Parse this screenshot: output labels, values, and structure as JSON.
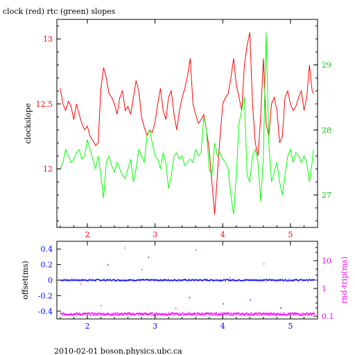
{
  "title": "clock (red) rtc (green) slopes",
  "footer": "2010-02-01 boson.physics.ubc.ca",
  "colors": {
    "clock": "#ff0000",
    "rtc": "#00ff00",
    "offset": "#0000ff",
    "rnd_trip": "#ff00ff",
    "axis": "#000000",
    "left_tick_top": "#ff0000",
    "right_tick_top": "#00cc00",
    "left_tick_bottom": "#0000ff",
    "right_tick_bottom": "#ff00ff"
  },
  "chart_data": [
    {
      "type": "line",
      "title": "clock (red) rtc (green) slopes",
      "ylabel": "clockslope",
      "xlim": [
        1.55,
        5.4
      ],
      "ylim": [
        11.55,
        13.15
      ],
      "y2lim": [
        26.5,
        29.7
      ],
      "x_ticks": [
        2,
        3,
        4,
        5
      ],
      "y_ticks": [
        12,
        12.5,
        13
      ],
      "y2_ticks": [
        27,
        28,
        29
      ],
      "grid": false,
      "series": [
        {
          "name": "clock",
          "axis": "left",
          "color": "#ff0000",
          "x": [
            1.6,
            1.64,
            1.68,
            1.72,
            1.76,
            1.8,
            1.84,
            1.88,
            1.92,
            1.96,
            2.0,
            2.04,
            2.08,
            2.12,
            2.16,
            2.2,
            2.24,
            2.28,
            2.32,
            2.36,
            2.4,
            2.44,
            2.48,
            2.52,
            2.56,
            2.6,
            2.64,
            2.68,
            2.72,
            2.76,
            2.8,
            2.84,
            2.88,
            2.92,
            2.96,
            3.0,
            3.04,
            3.08,
            3.12,
            3.16,
            3.2,
            3.24,
            3.28,
            3.32,
            3.36,
            3.4,
            3.44,
            3.48,
            3.52,
            3.56,
            3.6,
            3.64,
            3.68,
            3.72,
            3.76,
            3.8,
            3.84,
            3.88,
            3.92,
            3.96,
            4.0,
            4.04,
            4.08,
            4.12,
            4.16,
            4.2,
            4.24,
            4.28,
            4.32,
            4.36,
            4.4,
            4.44,
            4.48,
            4.52,
            4.56,
            4.6,
            4.64,
            4.68,
            4.72,
            4.76,
            4.8,
            4.84,
            4.88,
            4.92,
            4.96,
            5.0,
            5.04,
            5.08,
            5.12,
            5.16,
            5.2,
            5.24,
            5.28,
            5.32,
            5.34
          ],
          "y": [
            12.62,
            12.5,
            12.45,
            12.52,
            12.48,
            12.38,
            12.5,
            12.42,
            12.35,
            12.3,
            12.33,
            12.25,
            12.22,
            12.18,
            12.2,
            12.62,
            12.78,
            12.7,
            12.58,
            12.55,
            12.5,
            12.42,
            12.55,
            12.6,
            12.45,
            12.48,
            12.42,
            12.55,
            12.68,
            12.6,
            12.4,
            12.32,
            12.26,
            12.3,
            12.28,
            12.36,
            12.5,
            12.62,
            12.45,
            12.38,
            12.55,
            12.6,
            12.42,
            12.3,
            12.45,
            12.55,
            12.62,
            12.72,
            12.85,
            12.5,
            12.42,
            12.35,
            12.38,
            12.42,
            12.3,
            12.15,
            11.9,
            11.65,
            11.95,
            12.25,
            12.5,
            12.55,
            12.58,
            12.7,
            12.85,
            12.65,
            12.55,
            12.45,
            12.8,
            12.95,
            13.05,
            12.5,
            12.2,
            12.1,
            12.4,
            12.85,
            12.35,
            12.25,
            12.5,
            12.55,
            12.45,
            12.2,
            12.25,
            12.55,
            12.6,
            12.5,
            12.45,
            12.48,
            12.55,
            12.6,
            12.45,
            12.55,
            12.8,
            12.6,
            12.58
          ]
        },
        {
          "name": "rtc",
          "axis": "right",
          "color": "#00ff00",
          "x": [
            1.6,
            1.64,
            1.68,
            1.72,
            1.76,
            1.8,
            1.84,
            1.88,
            1.92,
            1.96,
            2.0,
            2.04,
            2.08,
            2.12,
            2.16,
            2.2,
            2.24,
            2.28,
            2.32,
            2.36,
            2.4,
            2.44,
            2.48,
            2.52,
            2.56,
            2.6,
            2.64,
            2.68,
            2.72,
            2.76,
            2.8,
            2.84,
            2.88,
            2.92,
            2.96,
            3.0,
            3.04,
            3.08,
            3.12,
            3.16,
            3.2,
            3.24,
            3.28,
            3.32,
            3.36,
            3.4,
            3.44,
            3.48,
            3.52,
            3.56,
            3.6,
            3.64,
            3.68,
            3.72,
            3.76,
            3.8,
            3.84,
            3.88,
            3.92,
            3.96,
            4.0,
            4.04,
            4.08,
            4.12,
            4.16,
            4.2,
            4.24,
            4.28,
            4.32,
            4.36,
            4.4,
            4.44,
            4.48,
            4.52,
            4.56,
            4.6,
            4.64,
            4.68,
            4.72,
            4.76,
            4.8,
            4.84,
            4.88,
            4.92,
            4.96,
            5.0,
            5.04,
            5.08,
            5.12,
            5.16,
            5.2,
            5.24,
            5.28,
            5.32,
            5.34
          ],
          "y": [
            27.4,
            27.5,
            27.7,
            27.6,
            27.5,
            27.55,
            27.65,
            27.7,
            27.55,
            27.6,
            27.85,
            27.7,
            27.55,
            27.4,
            27.6,
            27.3,
            26.95,
            27.5,
            27.6,
            27.45,
            27.35,
            27.5,
            27.4,
            27.3,
            27.25,
            27.4,
            27.55,
            27.2,
            27.4,
            27.7,
            27.6,
            27.5,
            27.9,
            28.0,
            27.8,
            27.6,
            27.55,
            27.4,
            27.65,
            27.5,
            27.1,
            27.3,
            27.6,
            27.65,
            27.55,
            27.6,
            27.45,
            27.5,
            27.55,
            27.5,
            27.7,
            27.6,
            27.65,
            28.2,
            28.0,
            27.4,
            27.3,
            27.8,
            27.6,
            27.65,
            27.55,
            27.5,
            27.4,
            27.0,
            26.7,
            27.3,
            28.1,
            28.3,
            28.5,
            27.3,
            27.2,
            27.6,
            27.7,
            27.5,
            26.9,
            27.6,
            29.5,
            27.8,
            27.2,
            27.35,
            27.5,
            27.2,
            27.0,
            27.3,
            27.6,
            27.7,
            27.5,
            27.65,
            27.6,
            27.5,
            27.6,
            27.5,
            27.2,
            27.5,
            27.7
          ]
        }
      ]
    },
    {
      "type": "scatter",
      "ylabel": "offset(ms)",
      "y2label": "rnd-trip(ms)",
      "xlim": [
        1.55,
        5.4
      ],
      "ylim": [
        -0.5,
        0.5
      ],
      "y2_scale": "log",
      "y2lim": [
        0.08,
        50
      ],
      "x_ticks": [
        2,
        3,
        4,
        5
      ],
      "y_ticks": [
        -0.4,
        -0.2,
        0,
        0.2,
        0.4
      ],
      "y2_ticks": [
        0.1,
        1,
        10
      ],
      "grid": false,
      "series": [
        {
          "name": "offset",
          "axis": "left",
          "color": "#0000ff",
          "baseline": 0.0,
          "spread": 0.01
        },
        {
          "name": "rnd-trip",
          "axis": "right",
          "color": "#ff00ff",
          "baseline": 0.12,
          "spread_factor": 1.1
        }
      ]
    }
  ]
}
